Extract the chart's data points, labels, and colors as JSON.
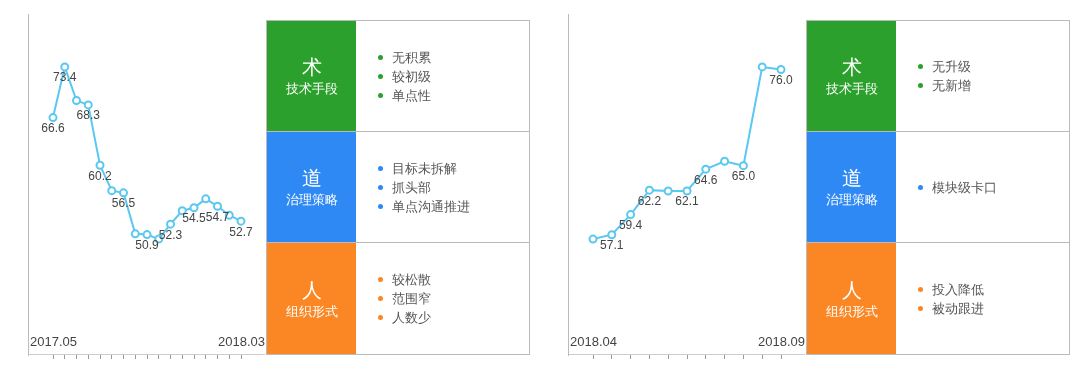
{
  "chart_data": [
    {
      "type": "line",
      "categories": [
        "2017.05",
        null,
        null,
        null,
        null,
        null,
        null,
        null,
        null,
        null,
        null,
        null,
        null,
        null,
        null,
        null,
        "2018.03"
      ],
      "values": [
        66.6,
        73.4,
        68.9,
        68.3,
        60.2,
        56.8,
        56.5,
        51.0,
        50.9,
        50.3,
        52.3,
        54.1,
        54.5,
        55.7,
        54.7,
        53.5,
        52.7
      ],
      "value_labels": [
        "66.6",
        "73.4",
        null,
        "68.3",
        "60.2",
        null,
        "56.5",
        null,
        "50.9",
        null,
        "52.3",
        null,
        "54.5",
        null,
        "54.7",
        null,
        "52.7"
      ],
      "color": "#5ac8f0",
      "marker": "circle",
      "line_style": "solid",
      "tick_labels": "x"
    },
    {
      "type": "other",
      "title": "术",
      "subtitle": "技术手段",
      "annotations": [
        "无积累",
        "较初级",
        "单点性"
      ],
      "color": "#2ca02c"
    },
    {
      "type": "other",
      "title": "道",
      "subtitle": "治理策略",
      "annotations": [
        "目标未拆解",
        "抓头部",
        "单点沟通推进"
      ],
      "color": "#2f89f5"
    },
    {
      "type": "other",
      "title": "人",
      "subtitle": "组织形式",
      "annotations": [
        "较松散",
        "范围窄",
        "人数少"
      ],
      "color": "#fb8624"
    },
    {
      "type": "line",
      "categories": [
        "2018.04",
        null,
        null,
        null,
        null,
        null,
        null,
        null,
        null,
        null,
        "2018.09"
      ],
      "values": [
        56.6,
        57.1,
        59.4,
        62.2,
        62.1,
        62.1,
        64.6,
        65.5,
        65.0,
        76.3,
        76.0
      ],
      "value_labels": [
        null,
        "57.1",
        "59.4",
        "62.2",
        null,
        "62.1",
        "64.6",
        null,
        "65.0",
        null,
        "76.0"
      ],
      "color": "#5ac8f0",
      "marker": "circle",
      "line_style": "solid",
      "tick_labels": "x"
    },
    {
      "type": "other",
      "title": "术",
      "subtitle": "技术手段",
      "annotations": [
        "无升级",
        "无新增"
      ],
      "color": "#2ca02c"
    },
    {
      "type": "other",
      "title": "道",
      "subtitle": "治理策略",
      "annotations": [
        "模块级卡口"
      ],
      "color": "#2f89f5"
    },
    {
      "type": "other",
      "title": "人",
      "subtitle": "组织形式",
      "annotations": [
        "投入降低",
        "被动跟进"
      ],
      "color": "#fb8624"
    }
  ]
}
